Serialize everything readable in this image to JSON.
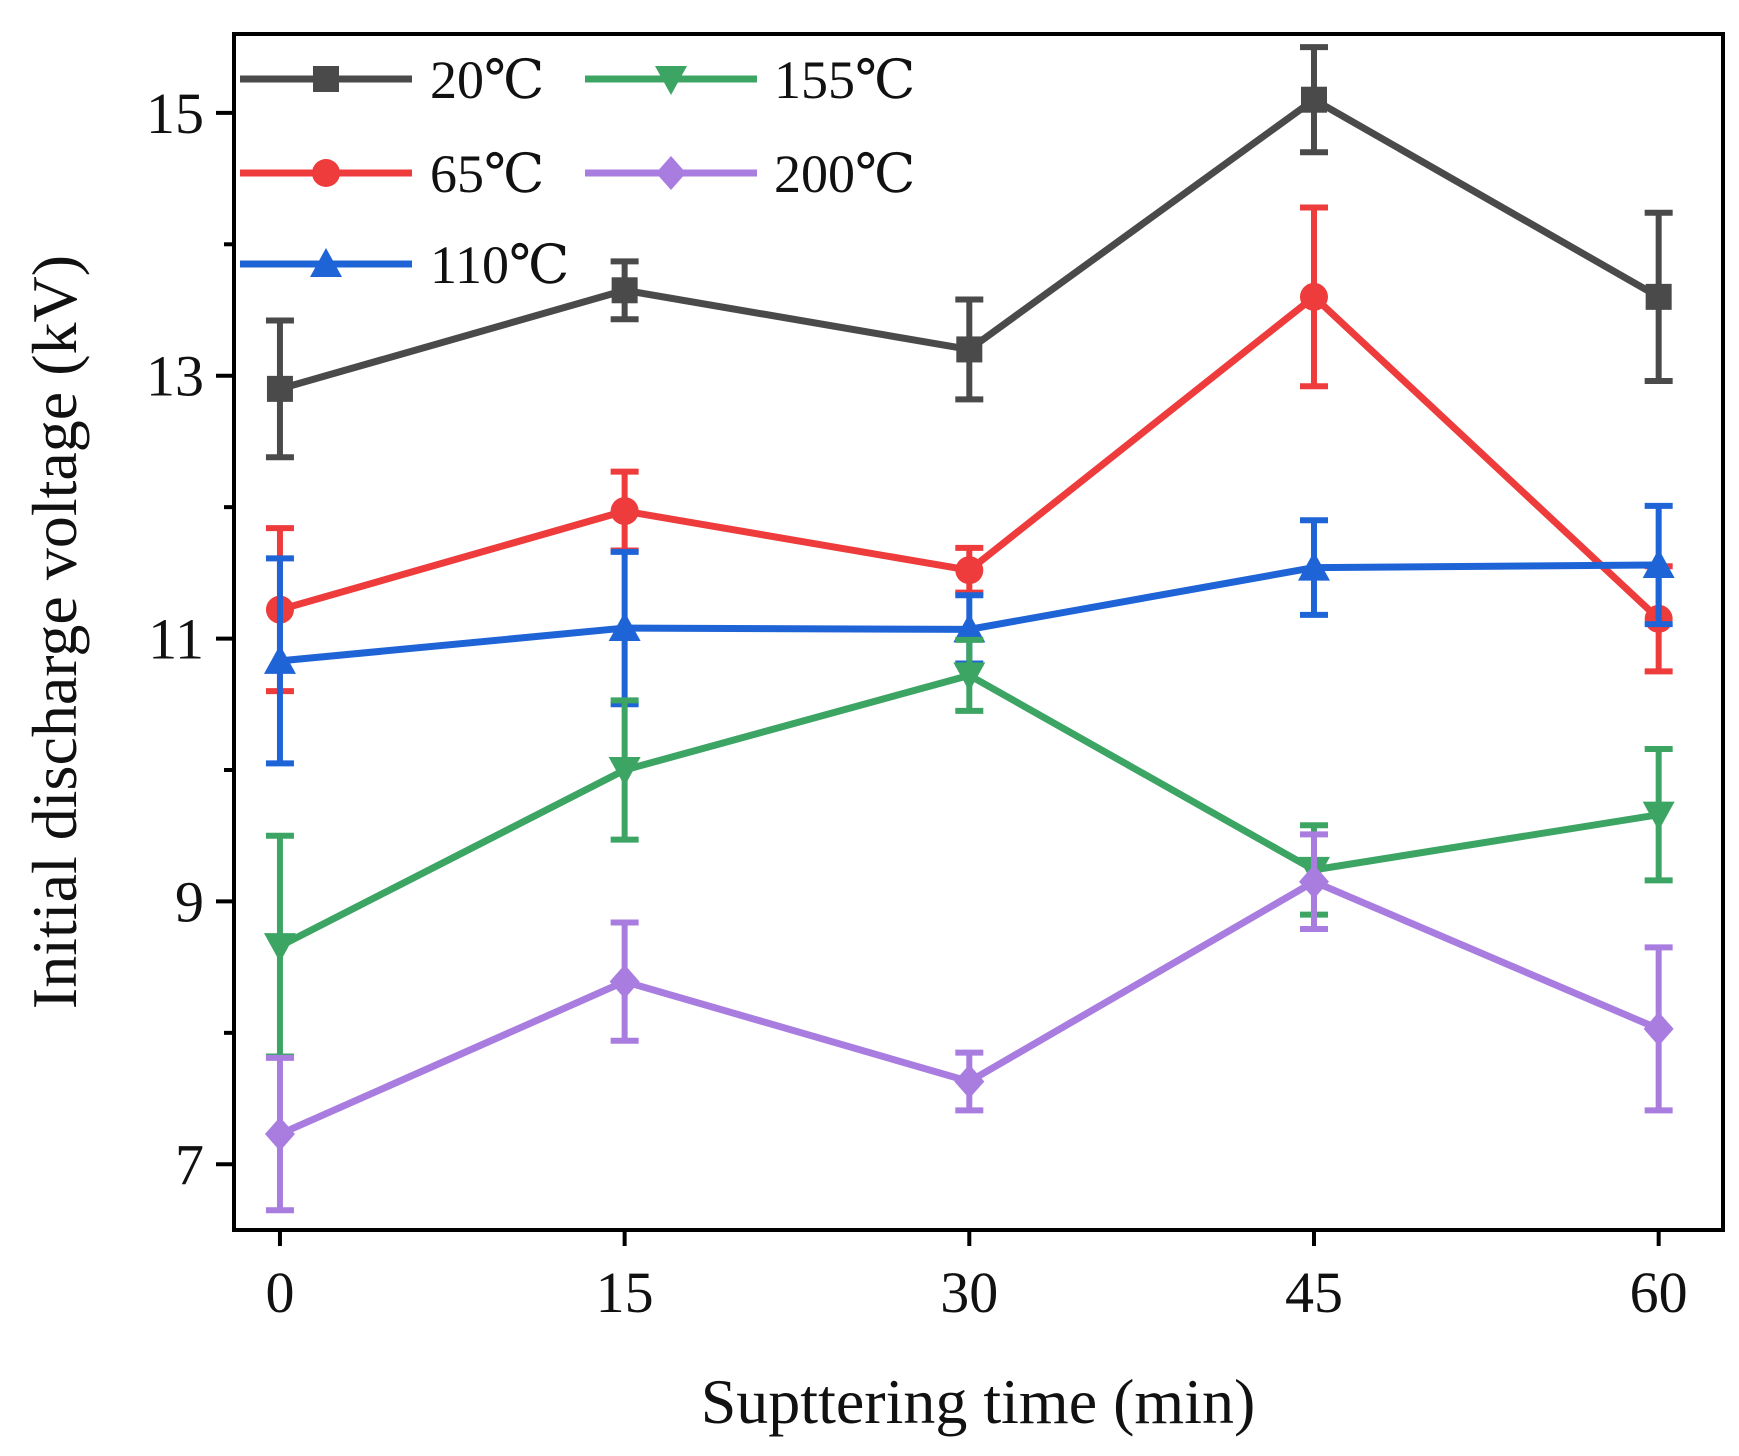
{
  "chart_data": {
    "type": "line",
    "title": "",
    "xlabel": "Supttering time (min)",
    "ylabel": "Initial discharge voltage (kV)",
    "x": [
      0,
      15,
      30,
      45,
      60
    ],
    "x_ticks": [
      0,
      15,
      30,
      45,
      60
    ],
    "x_tick_labels": [
      "0",
      "15",
      "30",
      "45",
      "60"
    ],
    "y_ticks_major": [
      7,
      9,
      11,
      13,
      15
    ],
    "y_tick_labels": [
      "7",
      "9",
      "11",
      "13",
      "15"
    ],
    "y_ticks_minor": [
      8,
      10,
      12,
      14
    ],
    "xlim": [
      -2,
      62.8
    ],
    "ylim": [
      6.5,
      15.6
    ],
    "grid": false,
    "legend_position": "top-left",
    "series": [
      {
        "name": "20℃",
        "color": "#4a4a4a",
        "marker": "square",
        "values": [
          12.9,
          13.65,
          13.2,
          15.1,
          13.6
        ],
        "errors": [
          0.52,
          0.22,
          0.38,
          0.4,
          0.64
        ]
      },
      {
        "name": "65℃",
        "color": "#ee3b3b",
        "marker": "circle",
        "values": [
          11.22,
          11.97,
          11.52,
          13.6,
          11.15
        ],
        "errors": [
          0.62,
          0.3,
          0.17,
          0.68,
          0.4
        ]
      },
      {
        "name": "110℃",
        "color": "#1f64d6",
        "marker": "triangle-up",
        "values": [
          10.83,
          11.08,
          11.07,
          11.54,
          11.56
        ],
        "errors": [
          0.78,
          0.58,
          0.26,
          0.36,
          0.45
        ]
      },
      {
        "name": "155℃",
        "color": "#3da564",
        "marker": "triangle-down",
        "values": [
          8.66,
          10.0,
          10.72,
          9.24,
          9.66
        ],
        "errors": [
          0.84,
          0.53,
          0.27,
          0.34,
          0.5
        ]
      },
      {
        "name": "200℃",
        "color": "#a97de0",
        "marker": "diamond",
        "values": [
          7.23,
          8.39,
          7.63,
          9.15,
          8.03
        ],
        "errors": [
          0.58,
          0.45,
          0.22,
          0.36,
          0.62
        ]
      }
    ]
  }
}
